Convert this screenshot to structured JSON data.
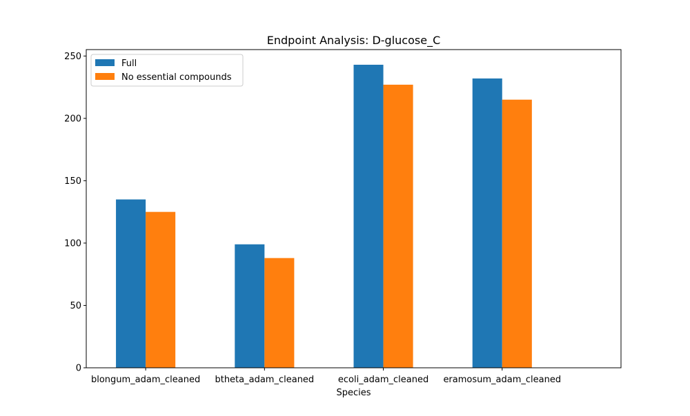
{
  "chart_data": {
    "type": "bar",
    "title": "Endpoint Analysis: D-glucose_C",
    "xlabel": "Species",
    "ylabel": "",
    "categories": [
      "blongum_adam_cleaned",
      "btheta_adam_cleaned",
      "ecoli_adam_cleaned",
      "eramosum_adam_cleaned"
    ],
    "series": [
      {
        "name": "Full",
        "color": "#1f77b4",
        "values": [
          135,
          99,
          243,
          232
        ]
      },
      {
        "name": "No essential compounds",
        "color": "#ff7f0e",
        "values": [
          125,
          88,
          227,
          215
        ]
      }
    ],
    "ylim": [
      0,
      255.15
    ],
    "yticks": [
      0,
      50,
      100,
      150,
      200,
      250
    ],
    "grid": false,
    "legend_position": "top-left"
  }
}
